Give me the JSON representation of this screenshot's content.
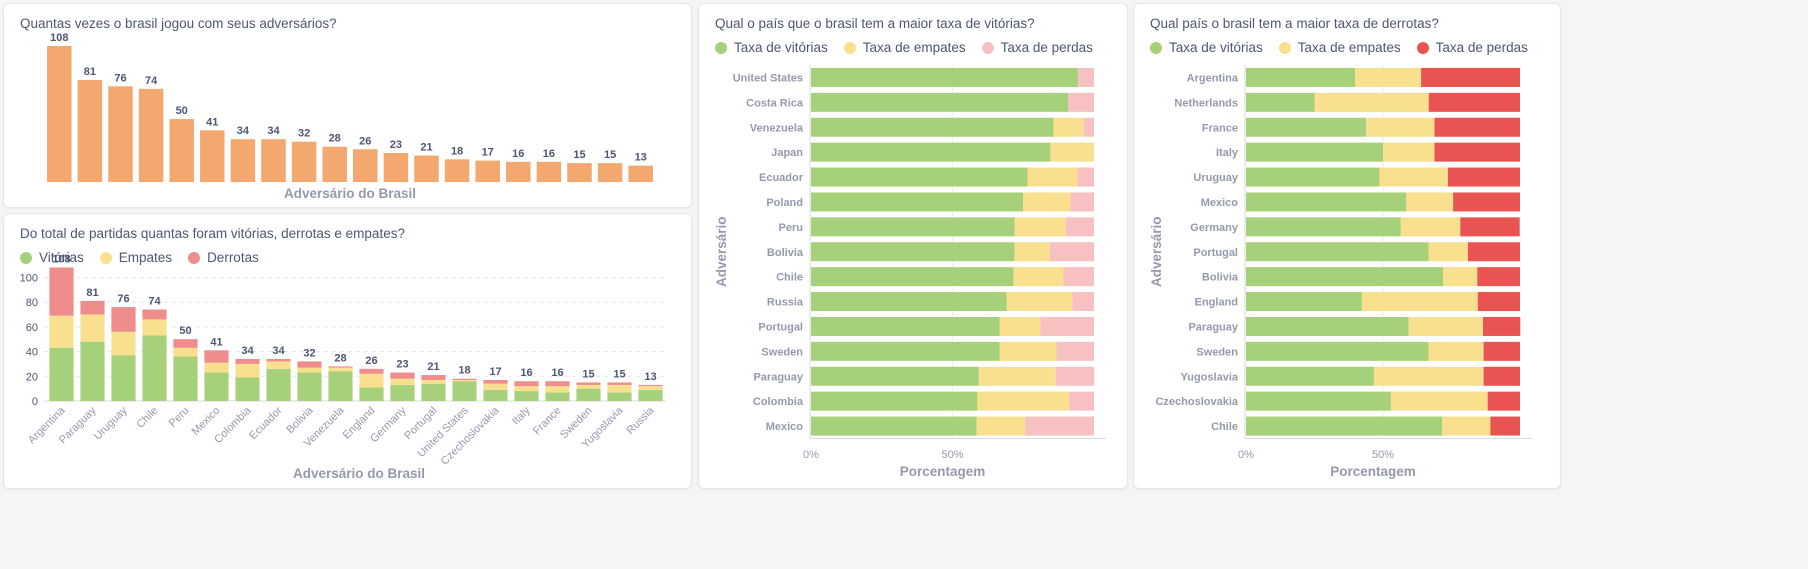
{
  "colors": {
    "orange": "#f2a86f",
    "green": "#a7d07b",
    "yellow": "#f9e08f",
    "red": "#ef8c8c",
    "pink": "#f7c1c1",
    "strongRed": "#e95453",
    "label": "#4c5773",
    "axis": "#949aab"
  },
  "cards": [
    {
      "title": "Quantas vezes o brasil jogou com seus adversários?",
      "legend": []
    },
    {
      "title": "Do total de partidas quantas foram vitórias, derrotas e empates?",
      "legend": [
        {
          "label": "Vitórias",
          "color": "#a7d07b"
        },
        {
          "label": "Empates",
          "color": "#f9e08f"
        },
        {
          "label": "Derrotas",
          "color": "#ef8c8c"
        }
      ]
    },
    {
      "title": "Qual o país que o brasil tem a maior taxa de vitórias?",
      "legend": [
        {
          "label": "Taxa de vitórias",
          "color": "#a7d07b"
        },
        {
          "label": "Taxa de empates",
          "color": "#f9e08f"
        },
        {
          "label": "Taxa de perdas",
          "color": "#f7c1c1"
        }
      ]
    },
    {
      "title": "Qual país o brasil tem a maior taxa de derrotas?",
      "legend": [
        {
          "label": "Taxa de vitórias",
          "color": "#a7d07b"
        },
        {
          "label": "Taxa de empates",
          "color": "#f9e08f"
        },
        {
          "label": "Taxa de perdas",
          "color": "#e95453"
        }
      ]
    }
  ],
  "chart_data": [
    {
      "type": "bar",
      "title": "Quantas vezes o brasil jogou com seus adversários?",
      "xlabel": "Adversário do Brasil",
      "ylabel": "",
      "ylim": [
        0,
        108
      ],
      "grid": false,
      "values": [
        108,
        81,
        76,
        74,
        50,
        41,
        34,
        34,
        32,
        28,
        26,
        23,
        21,
        18,
        17,
        16,
        16,
        15,
        15,
        13
      ],
      "data_labels": [
        "108",
        "81",
        "76",
        "74",
        "50",
        "41",
        "34",
        "34",
        "32",
        "28",
        "26",
        "23",
        "21",
        "18",
        "17",
        "16",
        "16",
        "15",
        "15",
        "13"
      ]
    },
    {
      "type": "bar",
      "stacked": true,
      "title": "Do total de partidas quantas foram vitórias, derrotas e empates?",
      "xlabel": "Adversário do Brasil",
      "ylabel": "",
      "ylim": [
        0,
        110
      ],
      "yticks": [
        "0",
        "20",
        "40",
        "60",
        "80",
        "100"
      ],
      "grid": true,
      "legend": "top-left",
      "categories": [
        "Argentina",
        "Paraguay",
        "Uruguay",
        "Chile",
        "Peru",
        "Mexico",
        "Colombia",
        "Ecuador",
        "Bolivia",
        "Venezuela",
        "England",
        "Germany",
        "Portugal",
        "United States",
        "Czechoslovakia",
        "Italy",
        "France",
        "Sweden",
        "Yugoslavia",
        "Russia"
      ],
      "series": [
        {
          "name": "Vitórias",
          "values": [
            43,
            48,
            37,
            53,
            36,
            23,
            19,
            26,
            23,
            24,
            11,
            13,
            14,
            16,
            9,
            8,
            7,
            10,
            7,
            9
          ]
        },
        {
          "name": "Empates",
          "values": [
            26,
            22,
            19,
            13,
            7,
            8,
            11,
            6,
            4,
            3,
            11,
            5,
            3,
            1,
            5,
            4,
            5,
            3,
            6,
            3
          ]
        },
        {
          "name": "Derrotas",
          "values": [
            39,
            11,
            20,
            8,
            7,
            10,
            4,
            2,
            5,
            1,
            4,
            5,
            4,
            1,
            3,
            4,
            4,
            2,
            2,
            1
          ]
        }
      ],
      "data_labels": [
        "108",
        "81",
        "76",
        "74",
        "50",
        "41",
        "34",
        "34",
        "32",
        "28",
        "26",
        "23",
        "21",
        "18",
        "17",
        "16",
        "16",
        "15",
        "15",
        "13"
      ]
    },
    {
      "type": "bar",
      "orientation": "horizontal",
      "stacked": true,
      "normalized": true,
      "title": "Qual o país que o brasil tem a maior taxa de vitórias?",
      "xlabel": "Porcentagem",
      "ylabel": "Adversário",
      "xticks": [
        "0%",
        "50%"
      ],
      "legend": "top-left",
      "categories": [
        "United States",
        "Costa Rica",
        "Venezuela",
        "Japan",
        "Ecuador",
        "Poland",
        "Peru",
        "Bolivia",
        "Chile",
        "Russia",
        "Portugal",
        "Sweden",
        "Paraguay",
        "Colombia",
        "Mexico"
      ],
      "series": [
        {
          "name": "Taxa de vitórias",
          "values": [
            0.944,
            0.909,
            0.857,
            0.846,
            0.765,
            0.75,
            0.72,
            0.719,
            0.716,
            0.692,
            0.667,
            0.667,
            0.593,
            0.588,
            0.585
          ]
        },
        {
          "name": "Taxa de empates",
          "values": [
            0.0,
            0.0,
            0.107,
            0.154,
            0.176,
            0.167,
            0.18,
            0.125,
            0.176,
            0.231,
            0.143,
            0.2,
            0.272,
            0.324,
            0.171
          ]
        },
        {
          "name": "Taxa de perdas",
          "values": [
            0.056,
            0.091,
            0.036,
            0.0,
            0.059,
            0.083,
            0.1,
            0.156,
            0.108,
            0.077,
            0.19,
            0.133,
            0.136,
            0.088,
            0.244
          ]
        }
      ]
    },
    {
      "type": "bar",
      "orientation": "horizontal",
      "stacked": true,
      "normalized": true,
      "title": "Qual país o brasil tem a maior taxa de derrotas?",
      "xlabel": "Porcentagem",
      "ylabel": "Adversário",
      "xticks": [
        "0%",
        "50%"
      ],
      "legend": "top-left",
      "categories": [
        "Argentina",
        "Netherlands",
        "France",
        "Italy",
        "Uruguay",
        "Mexico",
        "Germany",
        "Portugal",
        "Bolivia",
        "England",
        "Paraguay",
        "Sweden",
        "Yugoslavia",
        "Czechoslovakia",
        "Chile"
      ],
      "series": [
        {
          "name": "Taxa de vitórias",
          "values": [
            0.398,
            0.25,
            0.438,
            0.5,
            0.487,
            0.585,
            0.565,
            0.667,
            0.719,
            0.423,
            0.593,
            0.667,
            0.467,
            0.529,
            0.716
          ]
        },
        {
          "name": "Taxa de empates",
          "values": [
            0.241,
            0.417,
            0.25,
            0.188,
            0.25,
            0.171,
            0.217,
            0.143,
            0.125,
            0.423,
            0.272,
            0.2,
            0.4,
            0.353,
            0.176
          ]
        },
        {
          "name": "Taxa de perdas",
          "values": [
            0.361,
            0.333,
            0.312,
            0.312,
            0.263,
            0.244,
            0.217,
            0.19,
            0.156,
            0.154,
            0.136,
            0.133,
            0.133,
            0.118,
            0.108
          ]
        }
      ]
    }
  ]
}
